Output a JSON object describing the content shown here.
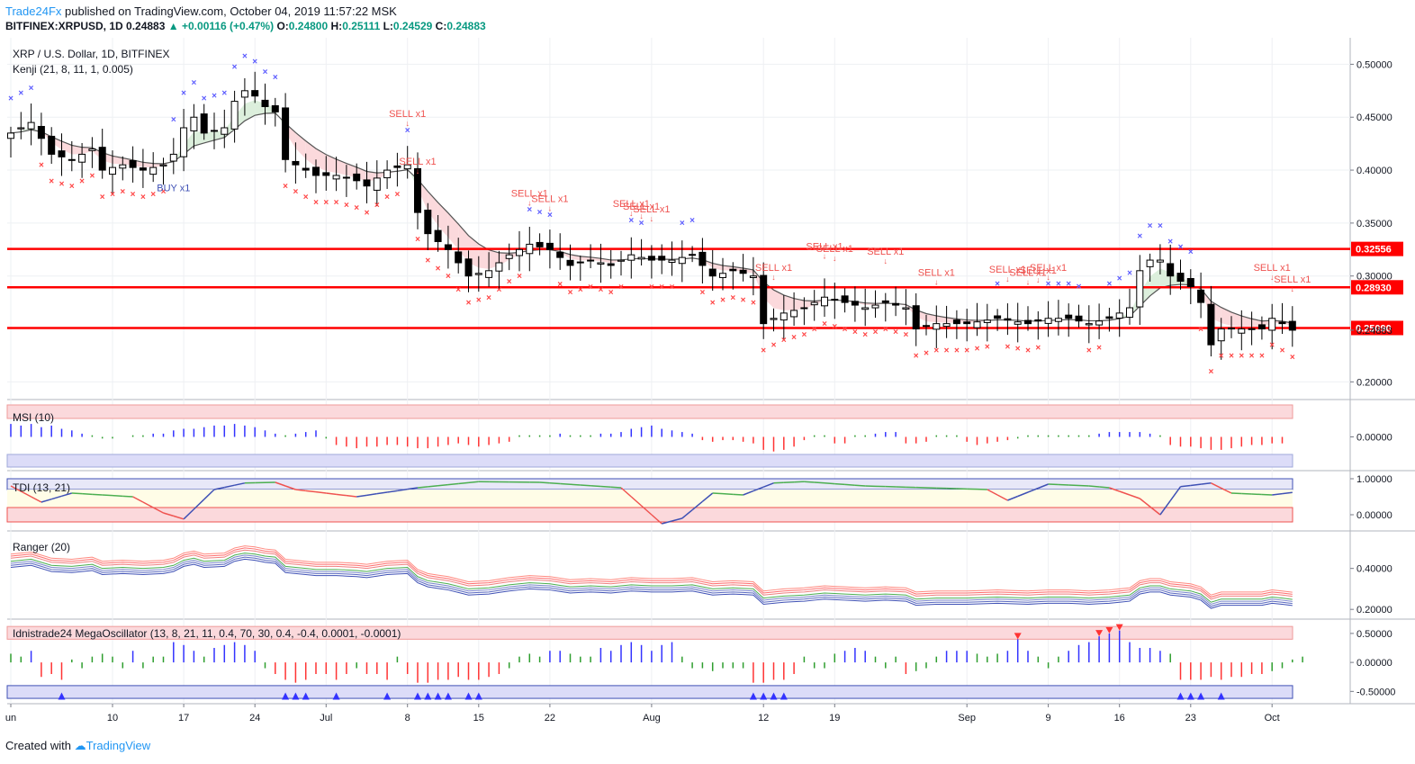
{
  "header": {
    "publisher": "Trade24Fx",
    "published_text": "published on TradingView.com, October 04, 2019 11:57:22 MSK",
    "symbol": "BITFINEX:XRPUSD, 1D",
    "last": "0.24883",
    "change": "+0.00116 (+0.47%)",
    "o_label": "O:",
    "o": "0.24800",
    "h_label": "H:",
    "h": "0.25111",
    "l_label": "L:",
    "l": "0.24529",
    "c_label": "C:",
    "c": "0.24883"
  },
  "footer": {
    "created_with": "Created with",
    "brand": "TradingView"
  },
  "colors": {
    "bull": "#ffffff",
    "bear": "#000000",
    "level": "#ff0000",
    "sell": "#ef5350",
    "buy": "#3f51b5",
    "cross_up": "#5b5bff",
    "cross_dn": "#ff4444"
  },
  "chart_data": [
    {
      "type": "candlestick",
      "title": "XRP / U.S. Dollar, 1D, BITFINEX",
      "indicator": "Kenji (21, 8, 11, 1, 0.005)",
      "ylim": [
        0.185,
        0.525
      ],
      "y_ticks": [
        "0.50000",
        "0.45000",
        "0.40000",
        "0.35000",
        "0.30000",
        "0.20000"
      ],
      "y_tick_values": [
        0.5,
        0.45,
        0.4,
        0.35,
        0.3,
        0.2
      ],
      "levels": [
        {
          "value": 0.32556,
          "label": "0.32556"
        },
        {
          "value": 0.2893,
          "label": "0.28930"
        },
        {
          "value": 0.2509,
          "label": "0.25090"
        }
      ],
      "last_price": {
        "value": 0.24883,
        "label": "0.24883"
      },
      "x_labels": [
        {
          "day": 0,
          "label": "un"
        },
        {
          "day": 10,
          "label": "10"
        },
        {
          "day": 17,
          "label": "17"
        },
        {
          "day": 24,
          "label": "24"
        },
        {
          "day": 31,
          "label": "Jul"
        },
        {
          "day": 39,
          "label": "8"
        },
        {
          "day": 46,
          "label": "15"
        },
        {
          "day": 53,
          "label": "22"
        },
        {
          "day": 63,
          "label": "Aug"
        },
        {
          "day": 74,
          "label": "12"
        },
        {
          "day": 81,
          "label": "19"
        },
        {
          "day": 94,
          "label": "Sep"
        },
        {
          "day": 102,
          "label": "9"
        },
        {
          "day": 109,
          "label": "16"
        },
        {
          "day": 116,
          "label": "23"
        },
        {
          "day": 124,
          "label": "Oct"
        }
      ],
      "anchors_close": [
        [
          0,
          0.435
        ],
        [
          2,
          0.445
        ],
        [
          4,
          0.415
        ],
        [
          6,
          0.41
        ],
        [
          8,
          0.42
        ],
        [
          9,
          0.4
        ],
        [
          11,
          0.405
        ],
        [
          13,
          0.4
        ],
        [
          15,
          0.405
        ],
        [
          16,
          0.415
        ],
        [
          17,
          0.44
        ],
        [
          18,
          0.45
        ],
        [
          19,
          0.435
        ],
        [
          21,
          0.44
        ],
        [
          22,
          0.465
        ],
        [
          23,
          0.475
        ],
        [
          24,
          0.47
        ],
        [
          25,
          0.46
        ],
        [
          26,
          0.455
        ],
        [
          27,
          0.41
        ],
        [
          28,
          0.405
        ],
        [
          30,
          0.395
        ],
        [
          32,
          0.395
        ],
        [
          34,
          0.39
        ],
        [
          35,
          0.385
        ],
        [
          37,
          0.4
        ],
        [
          39,
          0.405
        ],
        [
          40,
          0.36
        ],
        [
          41,
          0.34
        ],
        [
          43,
          0.325
        ],
        [
          45,
          0.3
        ],
        [
          47,
          0.305
        ],
        [
          49,
          0.32
        ],
        [
          51,
          0.33
        ],
        [
          53,
          0.325
        ],
        [
          55,
          0.31
        ],
        [
          57,
          0.315
        ],
        [
          59,
          0.31
        ],
        [
          61,
          0.32
        ],
        [
          63,
          0.315
        ],
        [
          65,
          0.315
        ],
        [
          67,
          0.32
        ],
        [
          69,
          0.3
        ],
        [
          71,
          0.305
        ],
        [
          73,
          0.3
        ],
        [
          74,
          0.255
        ],
        [
          76,
          0.265
        ],
        [
          78,
          0.27
        ],
        [
          80,
          0.28
        ],
        [
          82,
          0.275
        ],
        [
          84,
          0.27
        ],
        [
          86,
          0.275
        ],
        [
          88,
          0.27
        ],
        [
          89,
          0.25
        ],
        [
          91,
          0.255
        ],
        [
          94,
          0.255
        ],
        [
          97,
          0.26
        ],
        [
          100,
          0.255
        ],
        [
          102,
          0.26
        ],
        [
          104,
          0.26
        ],
        [
          106,
          0.255
        ],
        [
          108,
          0.26
        ],
        [
          110,
          0.27
        ],
        [
          111,
          0.305
        ],
        [
          112,
          0.315
        ],
        [
          113,
          0.315
        ],
        [
          114,
          0.3
        ],
        [
          115,
          0.295
        ],
        [
          116,
          0.29
        ],
        [
          117,
          0.275
        ],
        [
          118,
          0.235
        ],
        [
          119,
          0.25
        ],
        [
          121,
          0.25
        ],
        [
          123,
          0.25
        ],
        [
          124,
          0.26
        ],
        [
          125,
          0.255
        ],
        [
          126,
          0.2488
        ]
      ],
      "sell_signals": [
        {
          "day": 39,
          "label": "SELL x1"
        },
        {
          "day": 40,
          "label": "SELL x1"
        },
        {
          "day": 51,
          "label": "SELL x1"
        },
        {
          "day": 53,
          "label": "SELL x1"
        },
        {
          "day": 61,
          "label": "SELL x1"
        },
        {
          "day": 62,
          "label": "SELL x1"
        },
        {
          "day": 63,
          "label": "SELL x1"
        },
        {
          "day": 75,
          "label": "SELL x1"
        },
        {
          "day": 80,
          "label": "SELL x1"
        },
        {
          "day": 81,
          "label": "SELL x1"
        },
        {
          "day": 86,
          "label": "SELL x1"
        },
        {
          "day": 91,
          "label": "SELL x1"
        },
        {
          "day": 98,
          "label": "SELL x1"
        },
        {
          "day": 100,
          "label": "SELL x1"
        },
        {
          "day": 101,
          "label": "SELL x1"
        },
        {
          "day": 102,
          "label": "SELL x1"
        },
        {
          "day": 124,
          "label": "SELL x1"
        },
        {
          "day": 126,
          "label": "SELL x1"
        }
      ],
      "buy_signals": [
        {
          "day": 16,
          "label": "BUY x1"
        }
      ]
    },
    {
      "type": "bar",
      "title": "MSI (10)",
      "y_ticks": [
        "0.00000"
      ],
      "values": [
        0.8,
        0.7,
        0.8,
        0.6,
        0.7,
        0.5,
        0.4,
        0.2,
        0.1,
        -0.1,
        -0.1,
        0.0,
        0.1,
        0.1,
        0.2,
        0.2,
        0.4,
        0.5,
        0.5,
        0.6,
        0.7,
        0.7,
        0.8,
        0.7,
        0.6,
        0.4,
        0.2,
        0.1,
        0.2,
        0.3,
        0.4,
        -0.1,
        -0.5,
        -0.6,
        -0.7,
        -0.6,
        -0.6,
        -0.5,
        -0.5,
        -0.6,
        -0.7,
        -0.7,
        -0.6,
        -0.5,
        -0.4,
        -0.5,
        -0.6,
        -0.5,
        -0.4,
        -0.3,
        0.1,
        0.1,
        0.1,
        0.1,
        0.2,
        0.1,
        0.1,
        0.1,
        0.2,
        0.2,
        0.3,
        0.5,
        0.6,
        0.7,
        0.5,
        0.4,
        0.3,
        0.2,
        -0.2,
        -0.3,
        -0.2,
        -0.2,
        -0.3,
        -0.4,
        -0.8,
        -0.9,
        -0.8,
        -0.6,
        -0.2,
        0.1,
        0.1,
        -0.4,
        -0.4,
        0.1,
        0.1,
        0.2,
        0.3,
        0.3,
        -0.4,
        -0.4,
        -0.3,
        0.1,
        0.1,
        0.1,
        -0.3,
        -0.5,
        -0.4,
        -0.3,
        -0.2,
        -0.1,
        0.1,
        0.1,
        0.1,
        0.1,
        0.1,
        0.1,
        0.1,
        0.2,
        0.3,
        0.3,
        0.3,
        0.3,
        0.2,
        0.1,
        -0.5,
        -0.6,
        -0.6,
        -0.7,
        -0.8,
        -0.8,
        -0.7,
        -0.6,
        -0.5,
        -0.5,
        -0.4,
        -0.4
      ]
    },
    {
      "type": "line",
      "title": "TDI (13, 21)",
      "y_ticks": [
        "1.00000",
        "0.00000"
      ],
      "ylim": [
        -0.3,
        1.1
      ],
      "anchors": [
        [
          0,
          0.8
        ],
        [
          3,
          0.35
        ],
        [
          6,
          0.6
        ],
        [
          12,
          0.5
        ],
        [
          15,
          0.05
        ],
        [
          17,
          -0.12
        ],
        [
          20,
          0.7
        ],
        [
          23,
          0.88
        ],
        [
          26,
          0.9
        ],
        [
          28,
          0.7
        ],
        [
          34,
          0.5
        ],
        [
          40,
          0.75
        ],
        [
          46,
          0.92
        ],
        [
          52,
          0.9
        ],
        [
          60,
          0.75
        ],
        [
          64,
          -0.25
        ],
        [
          66,
          -0.1
        ],
        [
          69,
          0.6
        ],
        [
          72,
          0.55
        ],
        [
          75,
          0.88
        ],
        [
          78,
          0.92
        ],
        [
          84,
          0.8
        ],
        [
          90,
          0.75
        ],
        [
          96,
          0.7
        ],
        [
          98,
          0.4
        ],
        [
          102,
          0.85
        ],
        [
          106,
          0.8
        ],
        [
          108,
          0.75
        ],
        [
          111,
          0.45
        ],
        [
          113,
          0.0
        ],
        [
          115,
          0.78
        ],
        [
          118,
          0.88
        ],
        [
          120,
          0.6
        ],
        [
          124,
          0.55
        ],
        [
          126,
          0.62
        ],
        [
          130,
          0.6
        ]
      ]
    },
    {
      "type": "line",
      "title": "Ranger (20)",
      "y_ticks": [
        "0.40000",
        "0.20000"
      ],
      "ylim": [
        0.17,
        0.57
      ]
    },
    {
      "type": "bar",
      "title": "Idnistrade24 MegaOscillator (13, 8, 21, 11, 0.4, 70, 30, 0.4, -0.4, 0.0001, -0.0001)",
      "y_ticks": [
        "0.50000",
        "0.00000",
        "-0.50000"
      ],
      "ylim": [
        -0.65,
        0.7
      ],
      "values": [
        0.15,
        0.1,
        0.2,
        -0.25,
        -0.2,
        -0.3,
        0.05,
        -0.1,
        0.1,
        0.15,
        0.1,
        -0.1,
        0.2,
        -0.1,
        0.1,
        0.1,
        0.35,
        0.3,
        0.2,
        0.1,
        0.25,
        0.3,
        0.35,
        0.3,
        0.2,
        -0.1,
        -0.2,
        -0.3,
        -0.35,
        -0.3,
        -0.2,
        -0.2,
        -0.3,
        -0.2,
        -0.1,
        -0.2,
        -0.2,
        -0.3,
        0.1,
        -0.2,
        -0.35,
        -0.35,
        -0.3,
        -0.3,
        -0.25,
        -0.3,
        -0.3,
        -0.25,
        -0.2,
        -0.1,
        0.1,
        0.15,
        0.1,
        0.2,
        0.2,
        0.15,
        0.1,
        0.1,
        0.25,
        0.2,
        0.3,
        0.35,
        0.3,
        0.2,
        0.3,
        0.35,
        0.1,
        -0.1,
        -0.1,
        -0.15,
        -0.1,
        -0.1,
        -0.1,
        -0.35,
        -0.35,
        -0.3,
        -0.3,
        -0.2,
        0.1,
        -0.1,
        -0.1,
        0.15,
        0.2,
        0.25,
        0.2,
        0.1,
        -0.1,
        0.1,
        -0.2,
        -0.15,
        -0.1,
        0.1,
        0.2,
        0.2,
        0.2,
        0.15,
        0.1,
        0.15,
        0.2,
        0.4,
        0.2,
        0.1,
        -0.1,
        0.1,
        0.2,
        0.3,
        0.35,
        0.45,
        0.5,
        0.55,
        0.35,
        0.25,
        0.25,
        0.2,
        0.15,
        -0.3,
        -0.3,
        -0.3,
        -0.25,
        -0.3,
        -0.25,
        -0.25,
        -0.2,
        -0.2,
        -0.15,
        -0.1,
        0.05,
        0.1
      ]
    }
  ]
}
